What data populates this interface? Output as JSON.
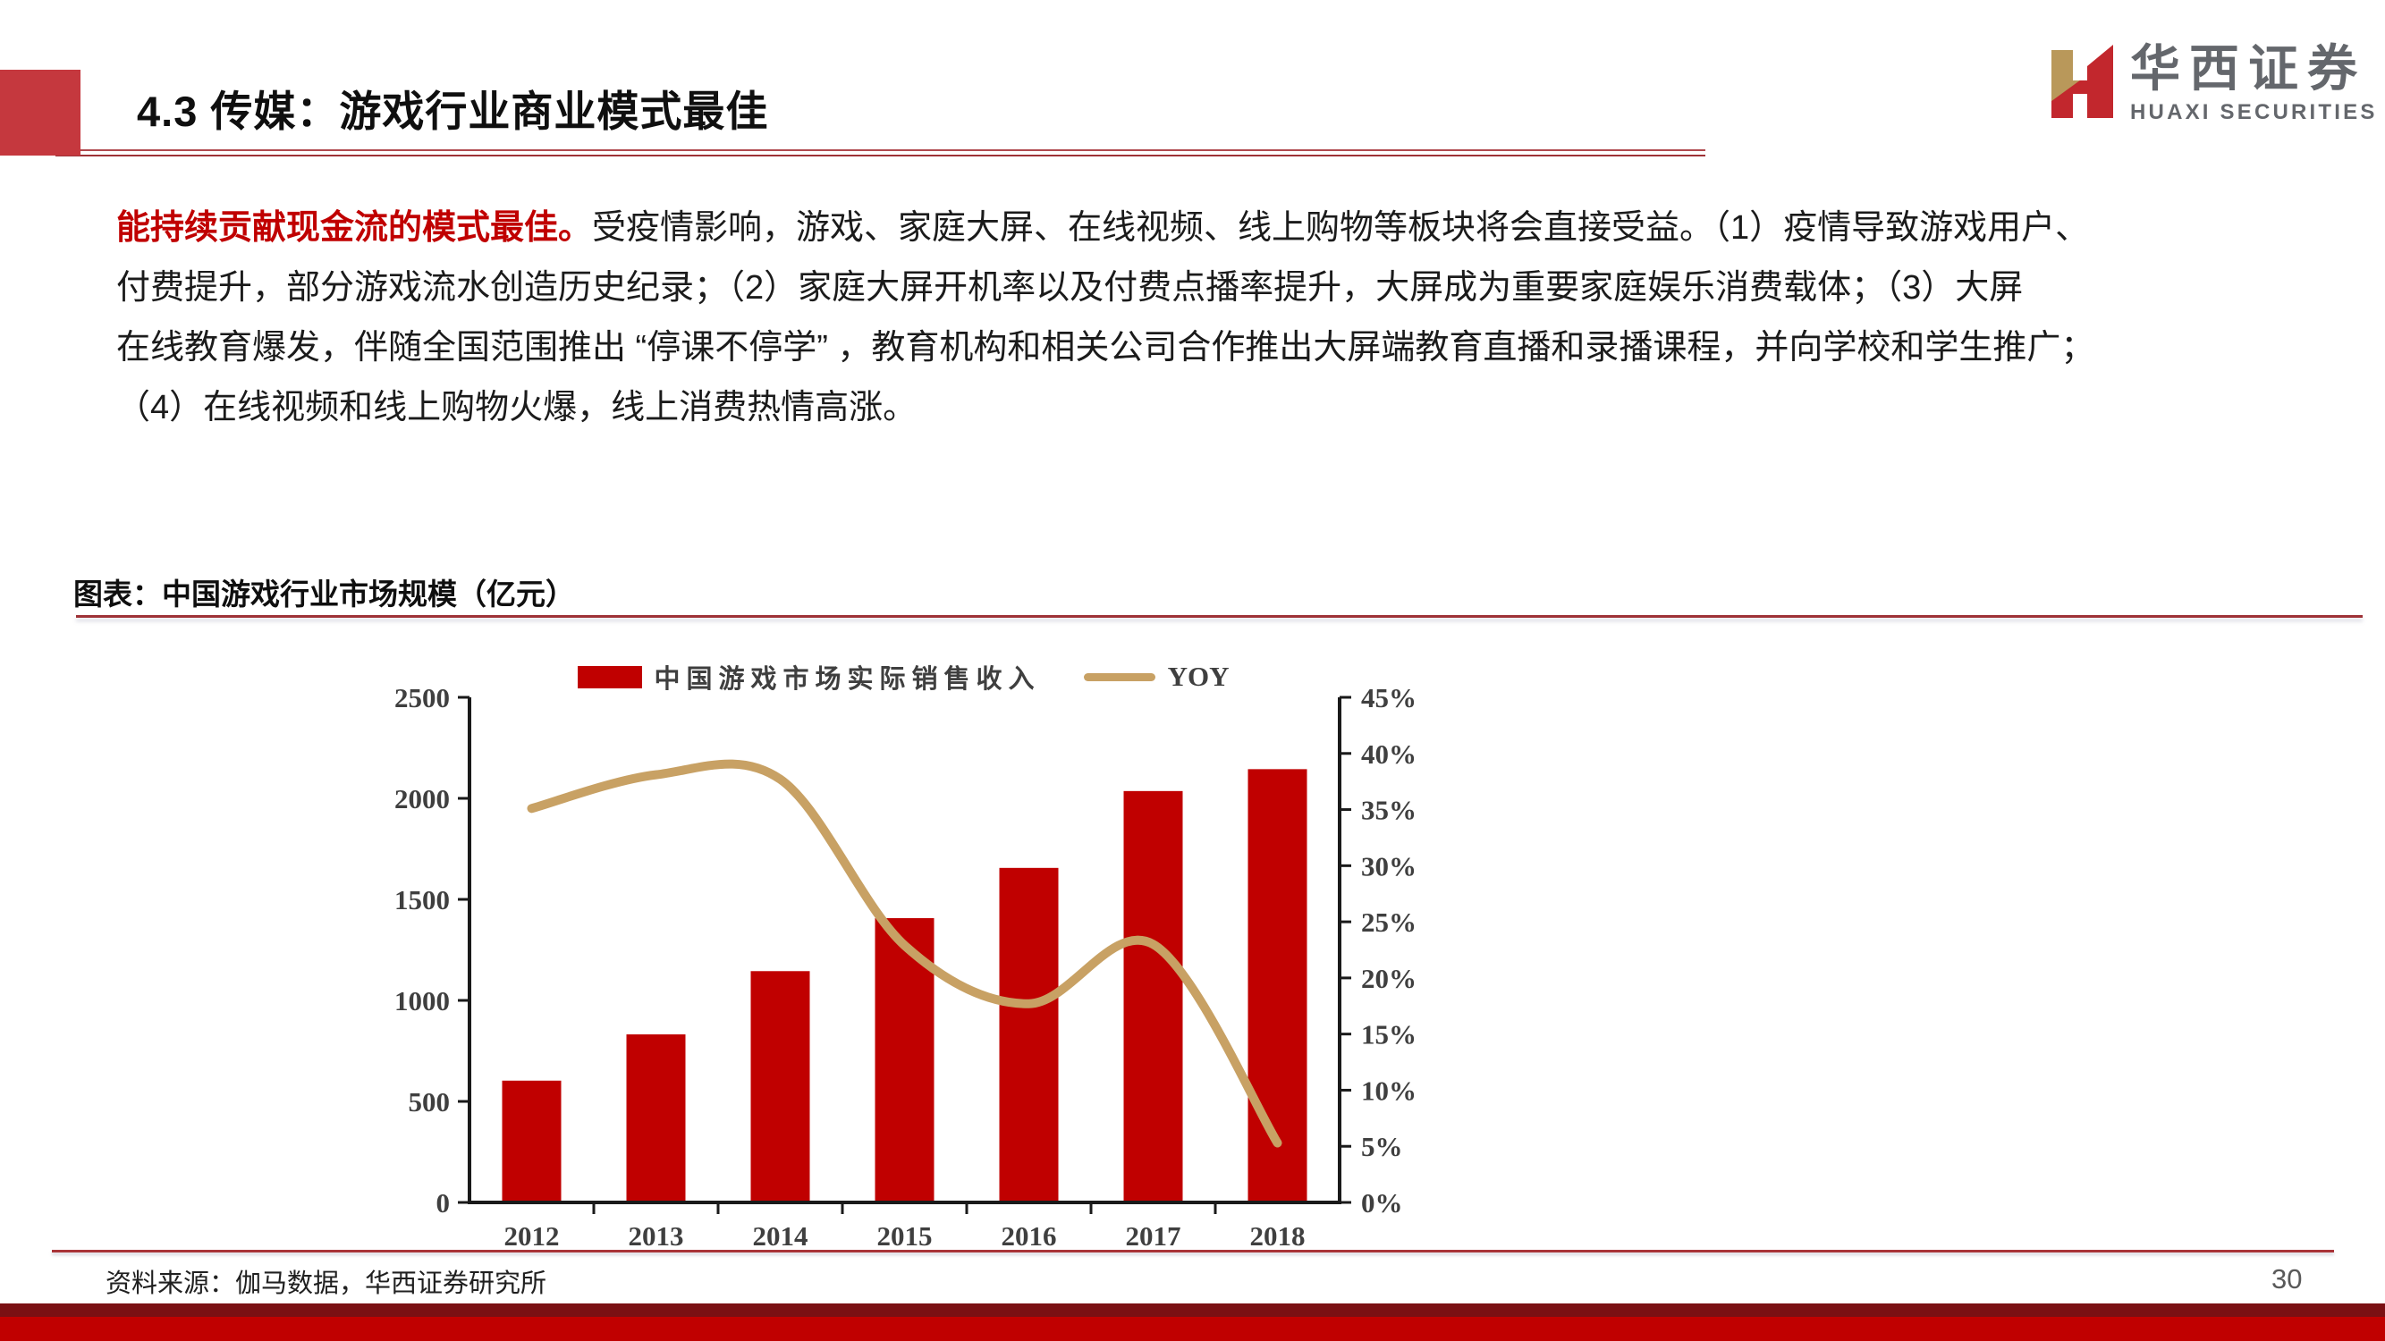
{
  "page": {
    "title": "4.3 传媒：游戏行业商业模式最佳",
    "page_number": "30"
  },
  "logo": {
    "name_cn": "华西证券",
    "name_en": "HUAXI SECURITIES",
    "mark_gold": "#B9985A",
    "mark_red": "#C2272D"
  },
  "paragraph": {
    "lead": "能持续贡献现金流的模式最佳。",
    "line1_rest": "受疫情影响，游戏、家庭大屏、在线视频、线上购物等板块将会直接受益。（1）疫情导致游戏用户、",
    "line2": "付费提升，部分游戏流水创造历史纪录；（2）家庭大屏开机率以及付费点播率提升，大屏成为重要家庭娱乐消费载体；（3）大屏",
    "line3": "在线教育爆发，伴随全国范围推出 “停课不停学” ，教育机构和相关公司合作推出大屏端教育直播和录播课程，并向学校和学生推广；",
    "line4": "（4）在线视频和线上购物火爆，线上消费热情高涨。"
  },
  "figure": {
    "caption": "图表：中国游戏行业市场规模（亿元）",
    "source": "资料来源：伽马数据，华西证券研究所"
  },
  "chart_data": {
    "type": "bar",
    "title": "中国游戏行业市场规模（亿元）",
    "categories": [
      "2012",
      "2013",
      "2014",
      "2015",
      "2016",
      "2017",
      "2018"
    ],
    "series": [
      {
        "name": "中国游戏市场实际销售收入",
        "type": "bar",
        "axis": "left",
        "values": [
          602.8,
          831.7,
          1144.8,
          1407.0,
          1655.7,
          2036.1,
          2144.4
        ],
        "color": "#C00000"
      },
      {
        "name": "YOY",
        "type": "line",
        "axis": "right",
        "values": [
          35.1,
          38.1,
          37.7,
          22.9,
          17.7,
          23.0,
          5.3
        ],
        "color": "#C8A164"
      }
    ],
    "left_axis": {
      "min": 0,
      "max": 2500,
      "step": 500,
      "ticks": [
        "0",
        "500",
        "1000",
        "1500",
        "2000",
        "2500"
      ]
    },
    "right_axis": {
      "min": 0,
      "max": 45,
      "step": 5,
      "format": "percent",
      "ticks": [
        "0%",
        "5%",
        "10%",
        "15%",
        "20%",
        "25%",
        "30%",
        "35%",
        "40%",
        "45%"
      ]
    },
    "legend_position": "top",
    "grid": false,
    "axis_color": "#1a1a1a",
    "label_color": "#3F3F3F"
  }
}
